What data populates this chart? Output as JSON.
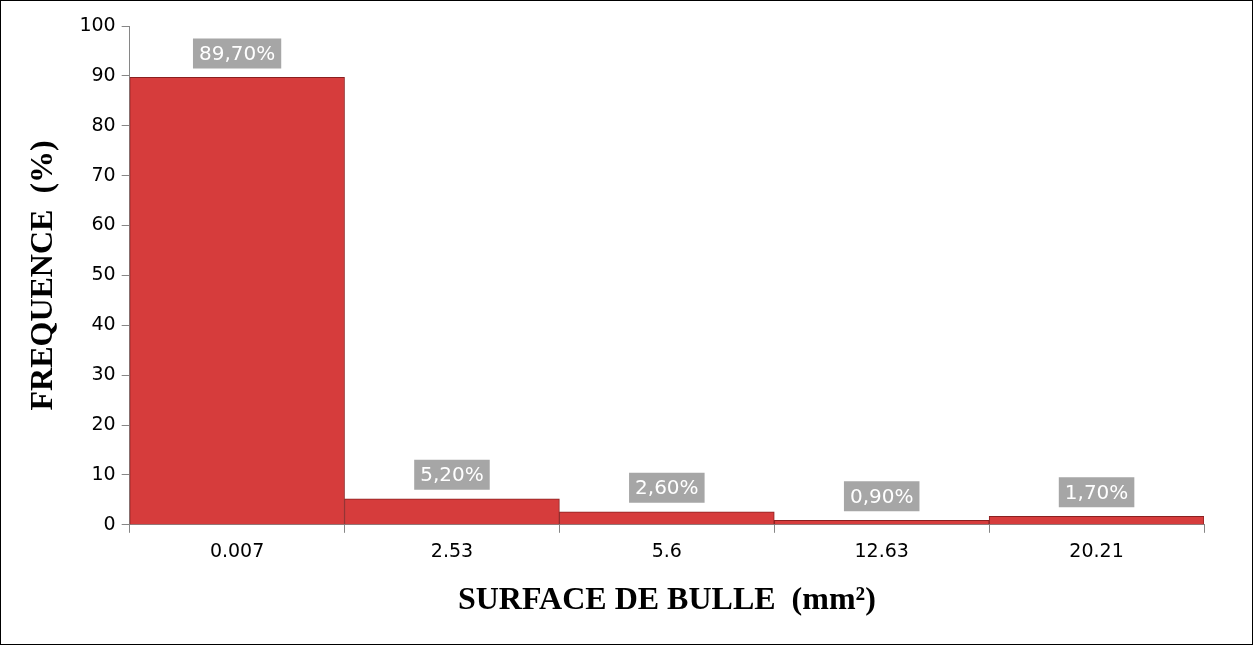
{
  "chart_data": {
    "type": "bar",
    "xlabel": "SURFACE DE BULLE  (mm²)",
    "ylabel": "FREQUENCE  (%)",
    "categories": [
      "0.007",
      "2.53",
      "5.6",
      "12.63",
      "20.21"
    ],
    "values": [
      89.7,
      5.2,
      2.6,
      0.9,
      1.7
    ],
    "value_labels": [
      "89,70%",
      "5,20%",
      "2,60%",
      "0,90%",
      "1,70%"
    ],
    "color": "#d63c3c",
    "ylim": [
      0,
      100
    ],
    "yticks": [
      0,
      10,
      20,
      30,
      40,
      50,
      60,
      70,
      80,
      90,
      100
    ],
    "grid": false,
    "legend": false
  }
}
